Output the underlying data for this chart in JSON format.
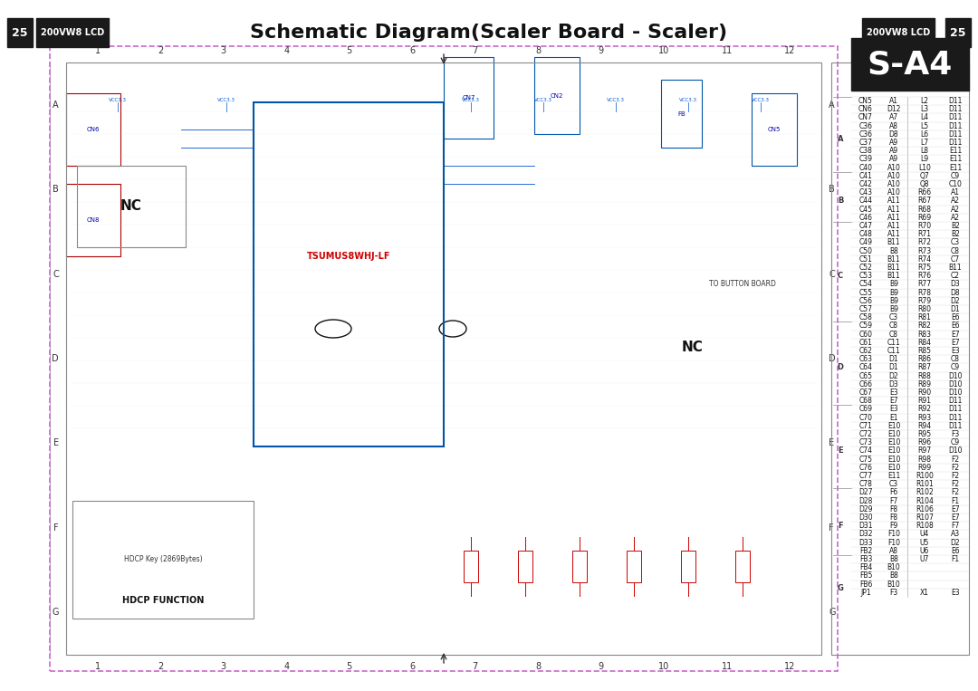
{
  "title": "Schematic Diagram(Scaler Board - Scaler)",
  "page_num": "25",
  "model": "200VW8 LCD",
  "s_a4_label": "S-A4",
  "bg_color": "#ffffff",
  "border_color": "#cc66cc",
  "header_bg": "#1a1a1a",
  "header_text_color": "#ffffff",
  "grid_numbers": [
    "1",
    "2",
    "3",
    "4",
    "5",
    "6",
    "7",
    "8",
    "9",
    "10",
    "11",
    "12"
  ],
  "grid_letters": [
    "A",
    "B",
    "C",
    "D",
    "E",
    "F",
    "G"
  ],
  "component_table": [
    [
      "CN5",
      "A1",
      "L2",
      "D11"
    ],
    [
      "CN6",
      "D12",
      "L3",
      "D11"
    ],
    [
      "CN7",
      "A7",
      "L4",
      "D11"
    ],
    [
      "C36",
      "A8",
      "L5",
      "D11"
    ],
    [
      "C36",
      "D8",
      "L6",
      "D11"
    ],
    [
      "C37",
      "A9",
      "L7",
      "D11"
    ],
    [
      "C38",
      "A9",
      "L8",
      "E11"
    ],
    [
      "C39",
      "A9",
      "L9",
      "E11"
    ],
    [
      "C40",
      "A10",
      "L10",
      "E11"
    ],
    [
      "C41",
      "A10",
      "Q7",
      "C9"
    ],
    [
      "C42",
      "A10",
      "Q8",
      "C10"
    ],
    [
      "C43",
      "A10",
      "R66",
      "A1"
    ],
    [
      "C44",
      "A11",
      "R67",
      "A2"
    ],
    [
      "C45",
      "A11",
      "R68",
      "A2"
    ],
    [
      "C46",
      "A11",
      "R69",
      "A2"
    ],
    [
      "C47",
      "A11",
      "R70",
      "B2"
    ],
    [
      "C48",
      "A11",
      "R71",
      "B2"
    ],
    [
      "C49",
      "B11",
      "R72",
      "C3"
    ],
    [
      "C50",
      "B8",
      "R73",
      "C8"
    ],
    [
      "C51",
      "B11",
      "R74",
      "C7"
    ],
    [
      "C52",
      "B11",
      "R75",
      "B11"
    ],
    [
      "C53",
      "B11",
      "R76",
      "C2"
    ],
    [
      "C54",
      "B9",
      "R77",
      "D3"
    ],
    [
      "C55",
      "B9",
      "R78",
      "D8"
    ],
    [
      "C56",
      "B9",
      "R79",
      "D2"
    ],
    [
      "C57",
      "B9",
      "R80",
      "D1"
    ],
    [
      "C58",
      "C3",
      "R81",
      "E6"
    ],
    [
      "C59",
      "C8",
      "R82",
      "E6"
    ],
    [
      "C60",
      "C8",
      "R83",
      "E7"
    ],
    [
      "C61",
      "C11",
      "R84",
      "E7"
    ],
    [
      "C62",
      "C11",
      "R85",
      "E3"
    ],
    [
      "C63",
      "D1",
      "R86",
      "C8"
    ],
    [
      "C64",
      "D1",
      "R87",
      "C9"
    ],
    [
      "C65",
      "D2",
      "R88",
      "D10"
    ],
    [
      "C66",
      "D3",
      "R89",
      "D10"
    ],
    [
      "C67",
      "E3",
      "R90",
      "D10"
    ],
    [
      "C68",
      "E7",
      "R91",
      "D11"
    ],
    [
      "C69",
      "E3",
      "R92",
      "D11"
    ],
    [
      "C70",
      "E1",
      "R93",
      "D11"
    ],
    [
      "C71",
      "E10",
      "R94",
      "D11"
    ],
    [
      "C72",
      "E10",
      "R95",
      "F3"
    ],
    [
      "C73",
      "E10",
      "R96",
      "C9"
    ],
    [
      "C74",
      "E10",
      "R97",
      "D10"
    ],
    [
      "C75",
      "E10",
      "R98",
      "F2"
    ],
    [
      "C76",
      "E10",
      "R99",
      "F2"
    ],
    [
      "C77",
      "E11",
      "R100",
      "F2"
    ],
    [
      "C78",
      "C3",
      "R101",
      "F2"
    ],
    [
      "D27",
      "F6",
      "R102",
      "F2"
    ],
    [
      "D28",
      "F7",
      "R104",
      "F1"
    ],
    [
      "D29",
      "F8",
      "R106",
      "E7"
    ],
    [
      "D30",
      "F8",
      "R107",
      "E7"
    ],
    [
      "D31",
      "F9",
      "R108",
      "F7"
    ],
    [
      "D32",
      "F10",
      "U4",
      "A3"
    ],
    [
      "D33",
      "F10",
      "U5",
      "D2"
    ],
    [
      "FB2",
      "A8",
      "U6",
      "E6"
    ],
    [
      "FB3",
      "B8",
      "U7",
      "F1"
    ],
    [
      "FB4",
      "B10",
      "",
      ""
    ],
    [
      "FB5",
      "B8",
      "",
      ""
    ],
    [
      "FB6",
      "B10",
      "",
      ""
    ],
    [
      "JP1",
      "F3",
      "X1",
      "E3"
    ]
  ]
}
